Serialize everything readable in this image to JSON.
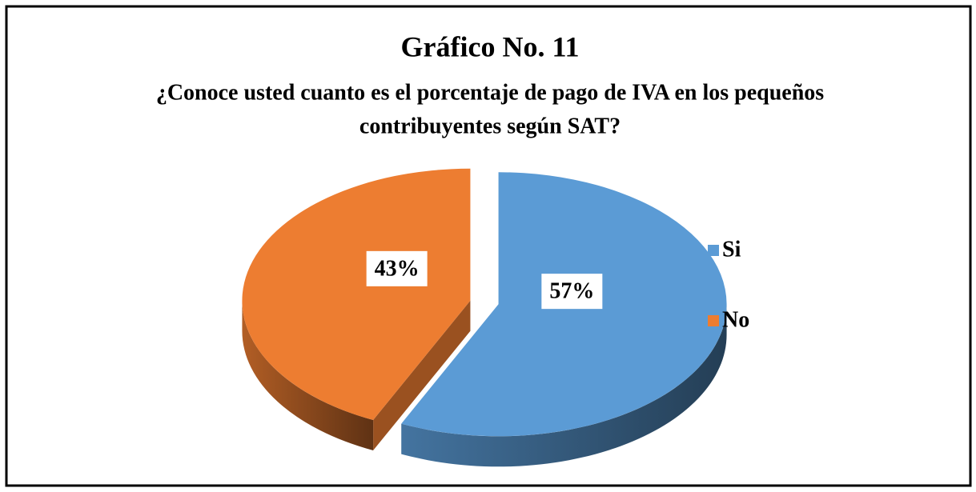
{
  "chart_data": {
    "type": "pie3d",
    "title": "Gráfico No. 11",
    "subtitle": [
      "¿Conoce usted cuanto es el porcentaje de pago de IVA en los  pequeños",
      "contribuyentes según SAT?"
    ],
    "categories": [
      "Si",
      "No"
    ],
    "values": [
      57,
      43
    ],
    "value_labels": [
      "57%",
      "43%"
    ],
    "colors": [
      "#5b9bd5",
      "#ed7d31"
    ],
    "legend": "right"
  }
}
